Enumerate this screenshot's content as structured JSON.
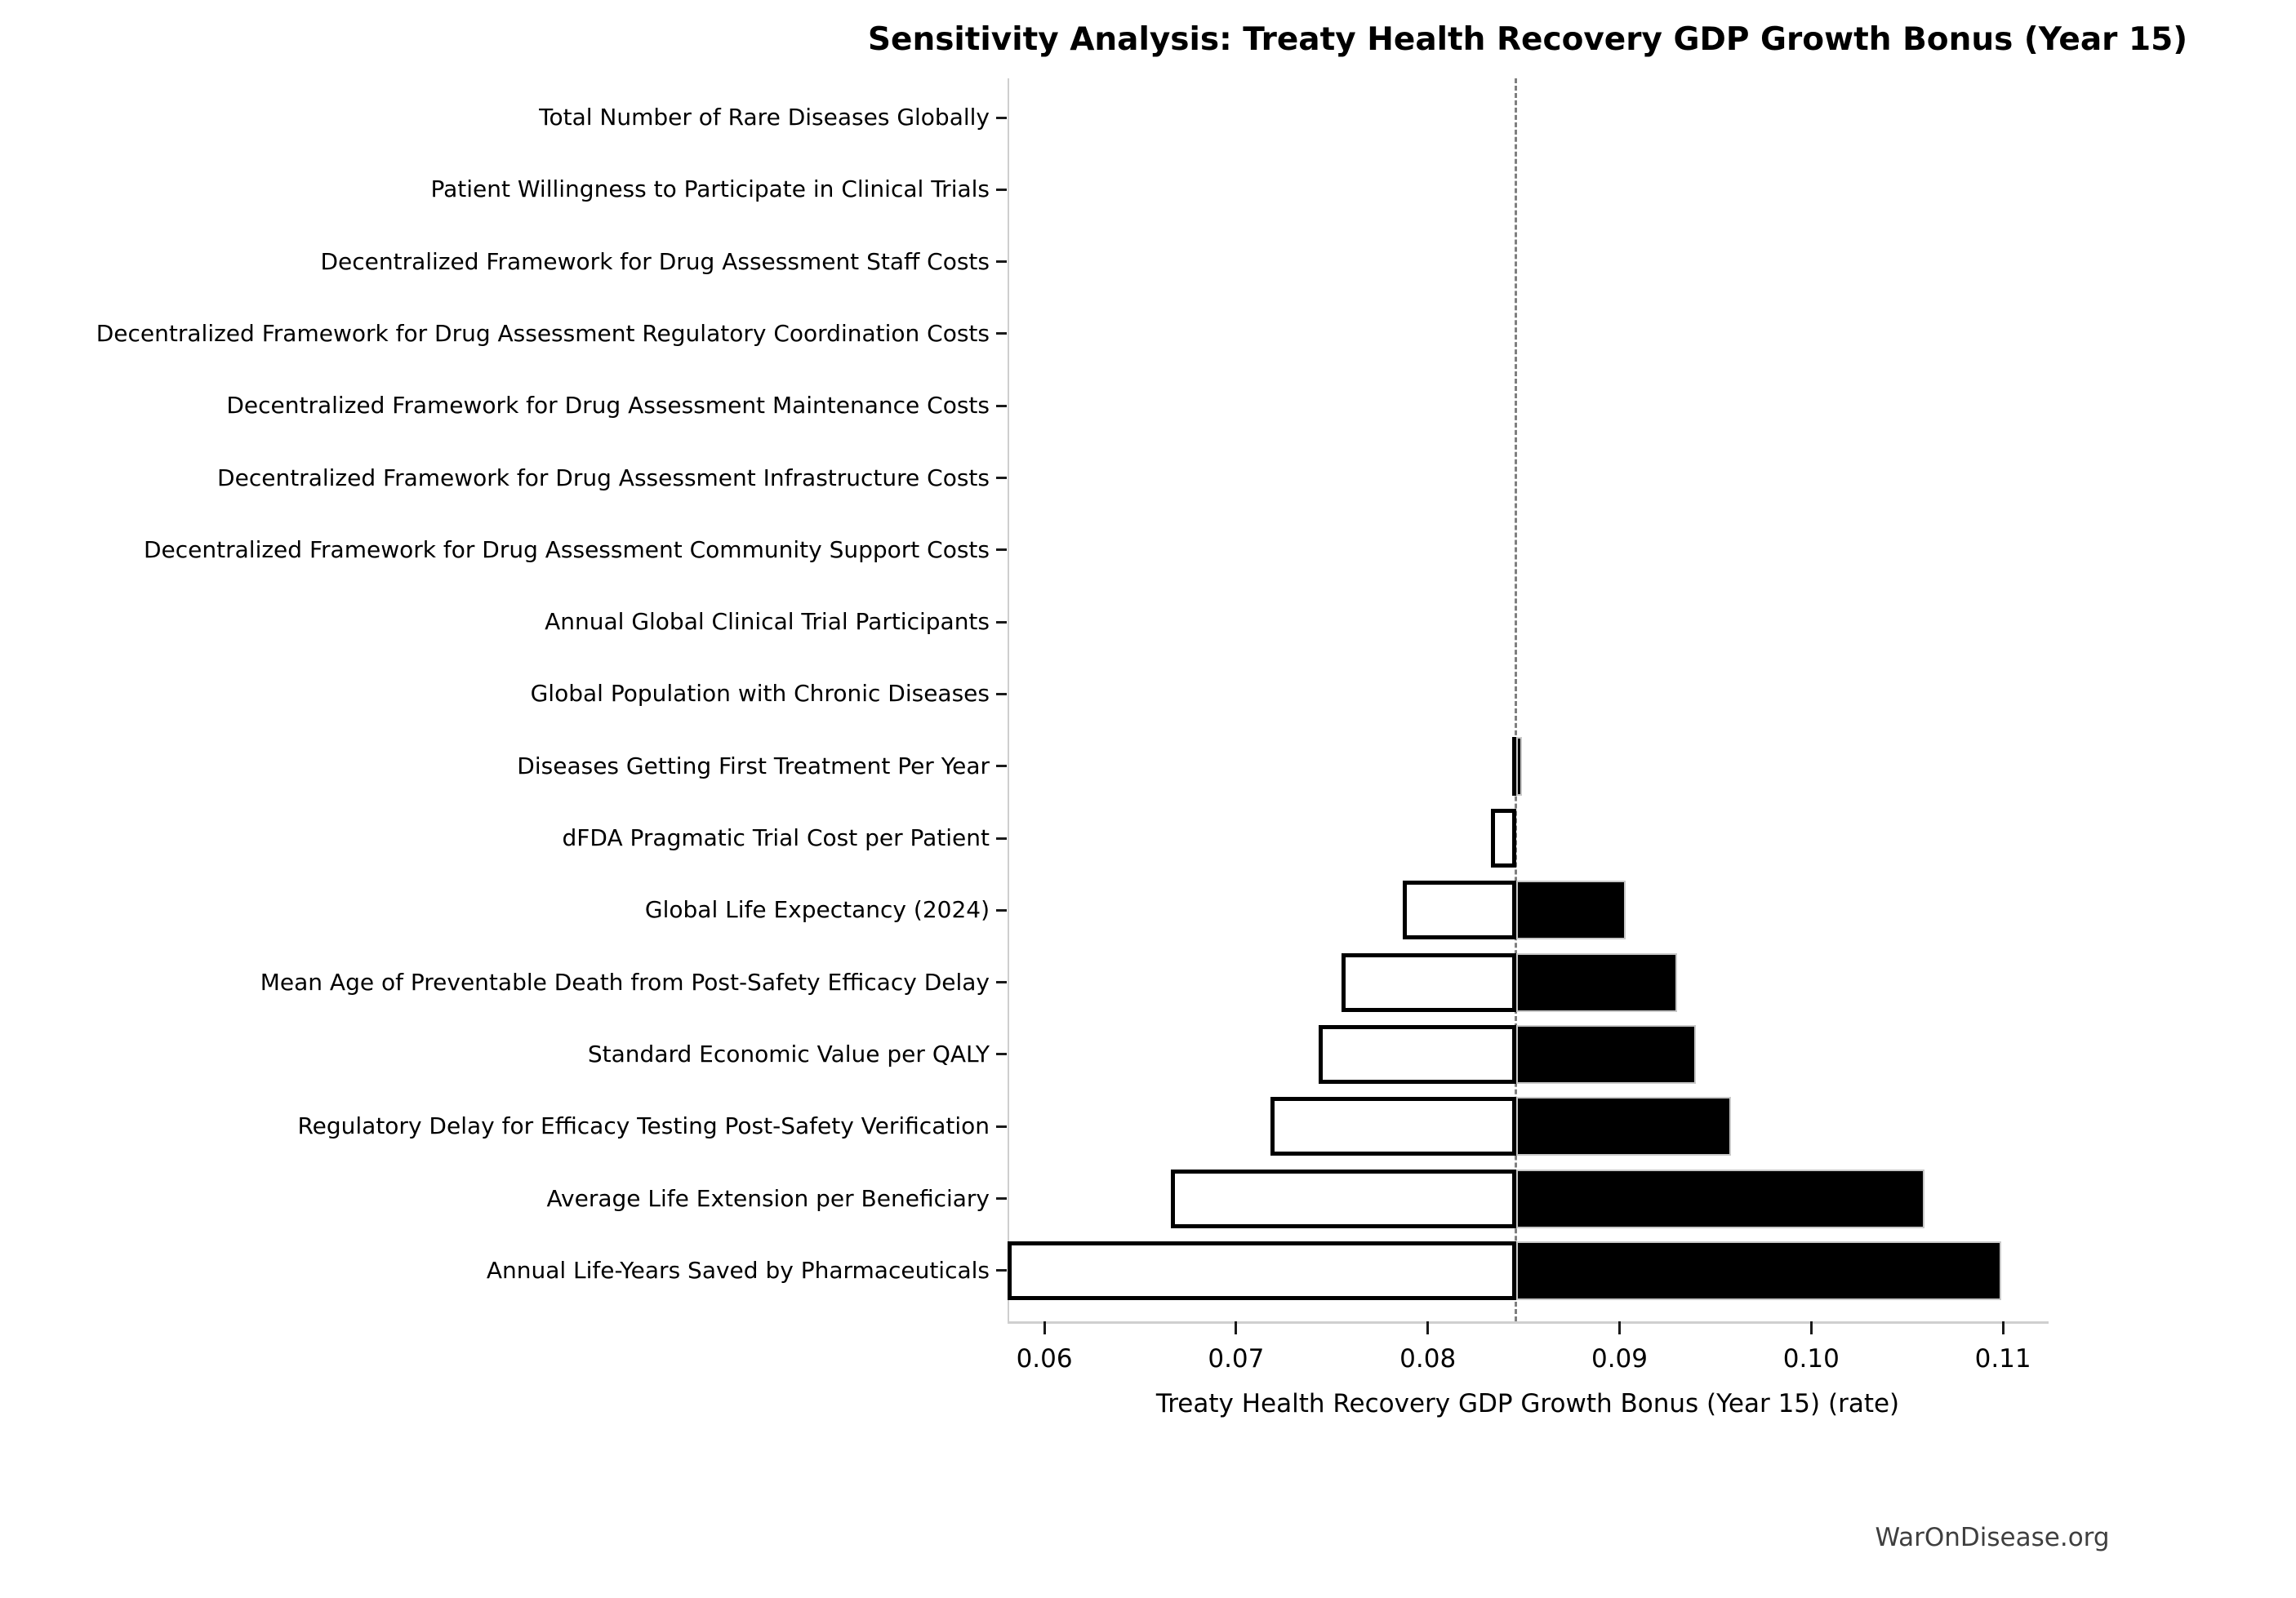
{
  "chart_data": {
    "type": "bar",
    "variant": "tornado-sensitivity",
    "title": "Sensitivity Analysis: Treaty Health Recovery GDP Growth Bonus (Year 15)",
    "xlabel": "Treaty Health Recovery GDP Growth Bonus (Year 15) (rate)",
    "watermark": "WarOnDisease.org",
    "baseline": 0.0846,
    "xlim": [
      0.05808,
      0.11238
    ],
    "grid": false,
    "legend": false,
    "x_ticks": [
      {
        "value": 0.06,
        "label": "0.06"
      },
      {
        "value": 0.07,
        "label": "0.07"
      },
      {
        "value": 0.08,
        "label": "0.08"
      },
      {
        "value": 0.09,
        "label": "0.09"
      },
      {
        "value": 0.1,
        "label": "0.10"
      },
      {
        "value": 0.11,
        "label": "0.11"
      }
    ],
    "bar_colors": {
      "low": "#ffffff",
      "high": "#000000",
      "low_edge": "#000000",
      "baseline_line": "#7f7f7f"
    },
    "rows": [
      {
        "label": "Total Number of Rare Diseases Globally",
        "low": 0.0846,
        "high": 0.0846
      },
      {
        "label": "Patient Willingness to Participate in Clinical Trials",
        "low": 0.0846,
        "high": 0.0846
      },
      {
        "label": "Decentralized Framework for Drug Assessment Staff Costs",
        "low": 0.0846,
        "high": 0.0846
      },
      {
        "label": "Decentralized Framework for Drug Assessment Regulatory Coordination Costs",
        "low": 0.0846,
        "high": 0.0846
      },
      {
        "label": "Decentralized Framework for Drug Assessment Maintenance Costs",
        "low": 0.0846,
        "high": 0.0846
      },
      {
        "label": "Decentralized Framework for Drug Assessment Infrastructure Costs",
        "low": 0.0846,
        "high": 0.0846
      },
      {
        "label": "Decentralized Framework for Drug Assessment Community Support Costs",
        "low": 0.0846,
        "high": 0.0846
      },
      {
        "label": "Annual Global Clinical Trial Participants",
        "low": 0.0846,
        "high": 0.0846
      },
      {
        "label": "Global Population with Chronic Diseases",
        "low": 0.0846,
        "high": 0.0846
      },
      {
        "label": "Diseases Getting First Treatment Per Year",
        "low": 0.0844,
        "high": 0.0849
      },
      {
        "label": "dFDA Pragmatic Trial Cost per Patient",
        "low": 0.0833,
        "high": 0.0846
      },
      {
        "label": "Global Life Expectancy (2024)",
        "low": 0.0787,
        "high": 0.0903
      },
      {
        "label": "Mean Age of Preventable Death from Post-Safety Efficacy Delay",
        "low": 0.0755,
        "high": 0.093
      },
      {
        "label": "Standard Economic Value per QALY",
        "low": 0.0743,
        "high": 0.094
      },
      {
        "label": "Regulatory Delay for Efficacy Testing Post-Safety Verification",
        "low": 0.0718,
        "high": 0.0958
      },
      {
        "label": "Average Life Extension per Beneficiary",
        "low": 0.0666,
        "high": 0.1059
      },
      {
        "label": "Annual Life-Years Saved by Pharmaceuticals",
        "low": 0.0581,
        "high": 0.1099
      }
    ]
  }
}
